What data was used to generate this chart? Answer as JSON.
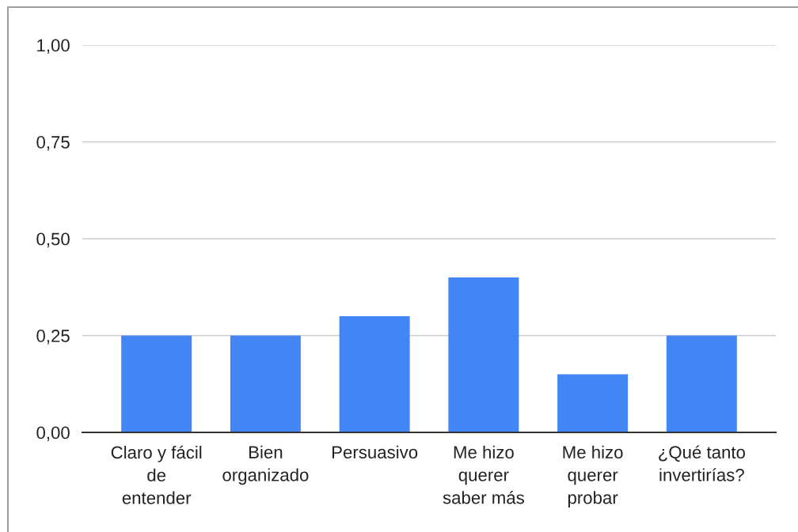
{
  "chart_data": {
    "type": "bar",
    "categories": [
      "Claro y fácil\nde\nentender",
      "Bien\norganizado",
      "Persuasivo",
      "Me hizo\nquerer\nsaber más",
      "Me hizo\nquerer\nprobar",
      "¿Qué tanto\ninvertirías?"
    ],
    "values": [
      0.25,
      0.25,
      0.3,
      0.4,
      0.15,
      0.25
    ],
    "color": "#4285f4",
    "ylim": [
      0,
      1
    ],
    "yticks": [
      {
        "value": 0,
        "label": "0,00"
      },
      {
        "value": 0.25,
        "label": "0,25"
      },
      {
        "value": 0.5,
        "label": "0,50"
      },
      {
        "value": 0.75,
        "label": "0,75"
      },
      {
        "value": 1,
        "label": "1,00"
      }
    ],
    "grid": "y",
    "legend": false
  }
}
